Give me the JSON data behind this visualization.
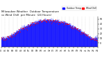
{
  "title": "Milwaukee Weather  Outdoor Temperature",
  "subtitle": "vs Wind Chill  per Minute  (24 Hours)",
  "legend_temp": "Outdoor Temp",
  "legend_wc": "Wind Chill",
  "bar_color": "#0000ff",
  "dot_color": "#ff0000",
  "background_color": "#ffffff",
  "ylim": [
    -8,
    55
  ],
  "yticks": [
    0,
    10,
    20,
    30,
    40,
    50
  ],
  "num_points": 1440,
  "title_fontsize": 2.8,
  "tick_fontsize": 2.2,
  "legend_fontsize": 2.2,
  "num_xticks": 25,
  "grid_color": "#aaaaaa",
  "grid_alpha": 0.6
}
